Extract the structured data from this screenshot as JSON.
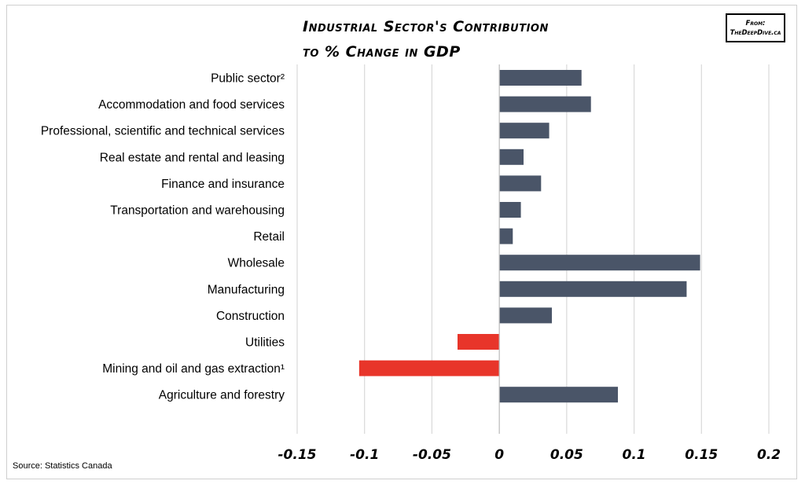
{
  "title_lines": [
    "Industrial Sector's Contribution",
    "to % Change in GDP"
  ],
  "badge": {
    "line1": "From:",
    "line2": "TheDeepDive.ca"
  },
  "source": "Source: Statistics Canada",
  "colors": {
    "positive": "#4a5568",
    "negative": "#e8352a",
    "grid": "#d9d9d9"
  },
  "chart_data": {
    "type": "bar",
    "orientation": "horizontal",
    "title": "Industrial Sector's Contribution to % Change in GDP",
    "categories": [
      "Public sector²",
      "Accommodation and food services",
      "Professional, scientific and technical services",
      "Real estate and rental and leasing",
      "Finance and insurance",
      "Transportation and warehousing",
      "Retail",
      "Wholesale",
      "Manufacturing",
      "Construction",
      "Utilities",
      "Mining and oil and gas extraction¹",
      "Agriculture and forestry"
    ],
    "values": [
      0.061,
      0.068,
      0.037,
      0.018,
      0.031,
      0.016,
      0.01,
      0.149,
      0.139,
      0.039,
      -0.031,
      -0.104,
      0.088
    ],
    "xlim": [
      -0.15,
      0.2
    ],
    "xticks": [
      -0.15,
      -0.1,
      -0.05,
      0,
      0.05,
      0.1,
      0.15,
      0.2
    ],
    "xtick_labels": [
      "-0.15",
      "-0.1",
      "-0.05",
      "0",
      "0.05",
      "0.1",
      "0.15",
      "0.2"
    ],
    "grid": true,
    "legend": "none"
  }
}
